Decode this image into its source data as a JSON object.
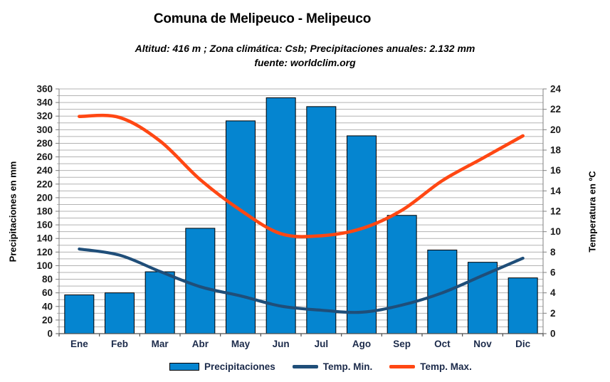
{
  "header": {
    "title": "Comuna de Melipeuco - Melipeuco",
    "subtitle_line1": "Altitud: 416 m ;  Zona climática: Csb;  Precipitaciones anuales: 2.132 mm",
    "subtitle_line2": "fuente: worldclim.org"
  },
  "axes": {
    "left_label": "Precipitaciones en mm",
    "right_label": "Temperatura en ºC"
  },
  "legend": {
    "items": [
      {
        "label": "Precipitaciones",
        "type": "box",
        "color": "#0585d0"
      },
      {
        "label": "Temp. Min.",
        "type": "line",
        "color": "#1f4e79"
      },
      {
        "label": "Temp. Max.",
        "type": "line",
        "color": "#ff4713"
      }
    ]
  },
  "chart_data": {
    "type": "bar",
    "title": "Comuna de Melipeuco - Melipeuco",
    "categories": [
      "Ene",
      "Feb",
      "Mar",
      "Abr",
      "May",
      "Jun",
      "Jul",
      "Ago",
      "Sep",
      "Oct",
      "Nov",
      "Dic"
    ],
    "bar_series": {
      "name": "Precipitaciones",
      "unit": "mm",
      "values": [
        57,
        60,
        91,
        155,
        313,
        347,
        334,
        291,
        174,
        123,
        105,
        82
      ],
      "color": "#0585d0",
      "border_color": "#000000"
    },
    "line_series": [
      {
        "name": "Temp. Min.",
        "unit": "°C",
        "axis": "right",
        "color": "#1f4e79",
        "width": 4.2,
        "values": [
          8.3,
          7.7,
          6.1,
          4.6,
          3.7,
          2.7,
          2.3,
          2.1,
          2.8,
          4.0,
          5.7,
          7.4
        ]
      },
      {
        "name": "Temp. Max.",
        "unit": "°C",
        "axis": "right",
        "color": "#ff4713",
        "width": 4.6,
        "values": [
          21.3,
          21.2,
          18.9,
          15.1,
          12.1,
          9.8,
          9.6,
          10.3,
          12.1,
          15.0,
          17.2,
          19.4
        ]
      }
    ],
    "xlabel": "",
    "ylabel_left": "Precipitaciones en mm",
    "ylabel_right": "Temperatura en ºC",
    "ylim_left": [
      0,
      360
    ],
    "ytick_step_left": 20,
    "minor_grid_step_left": 10,
    "ylim_right": [
      0,
      24
    ],
    "ytick_step_right": 2,
    "annual_precipitation_mm": 2132,
    "grid": true,
    "legend_position": "bottom",
    "colors": {
      "grid": "#b3b3b3",
      "axis": "#808080",
      "x_axis": "#4d4d4d",
      "tick_text": "#1a1a1a",
      "month_text": "#1b2a4a"
    }
  }
}
